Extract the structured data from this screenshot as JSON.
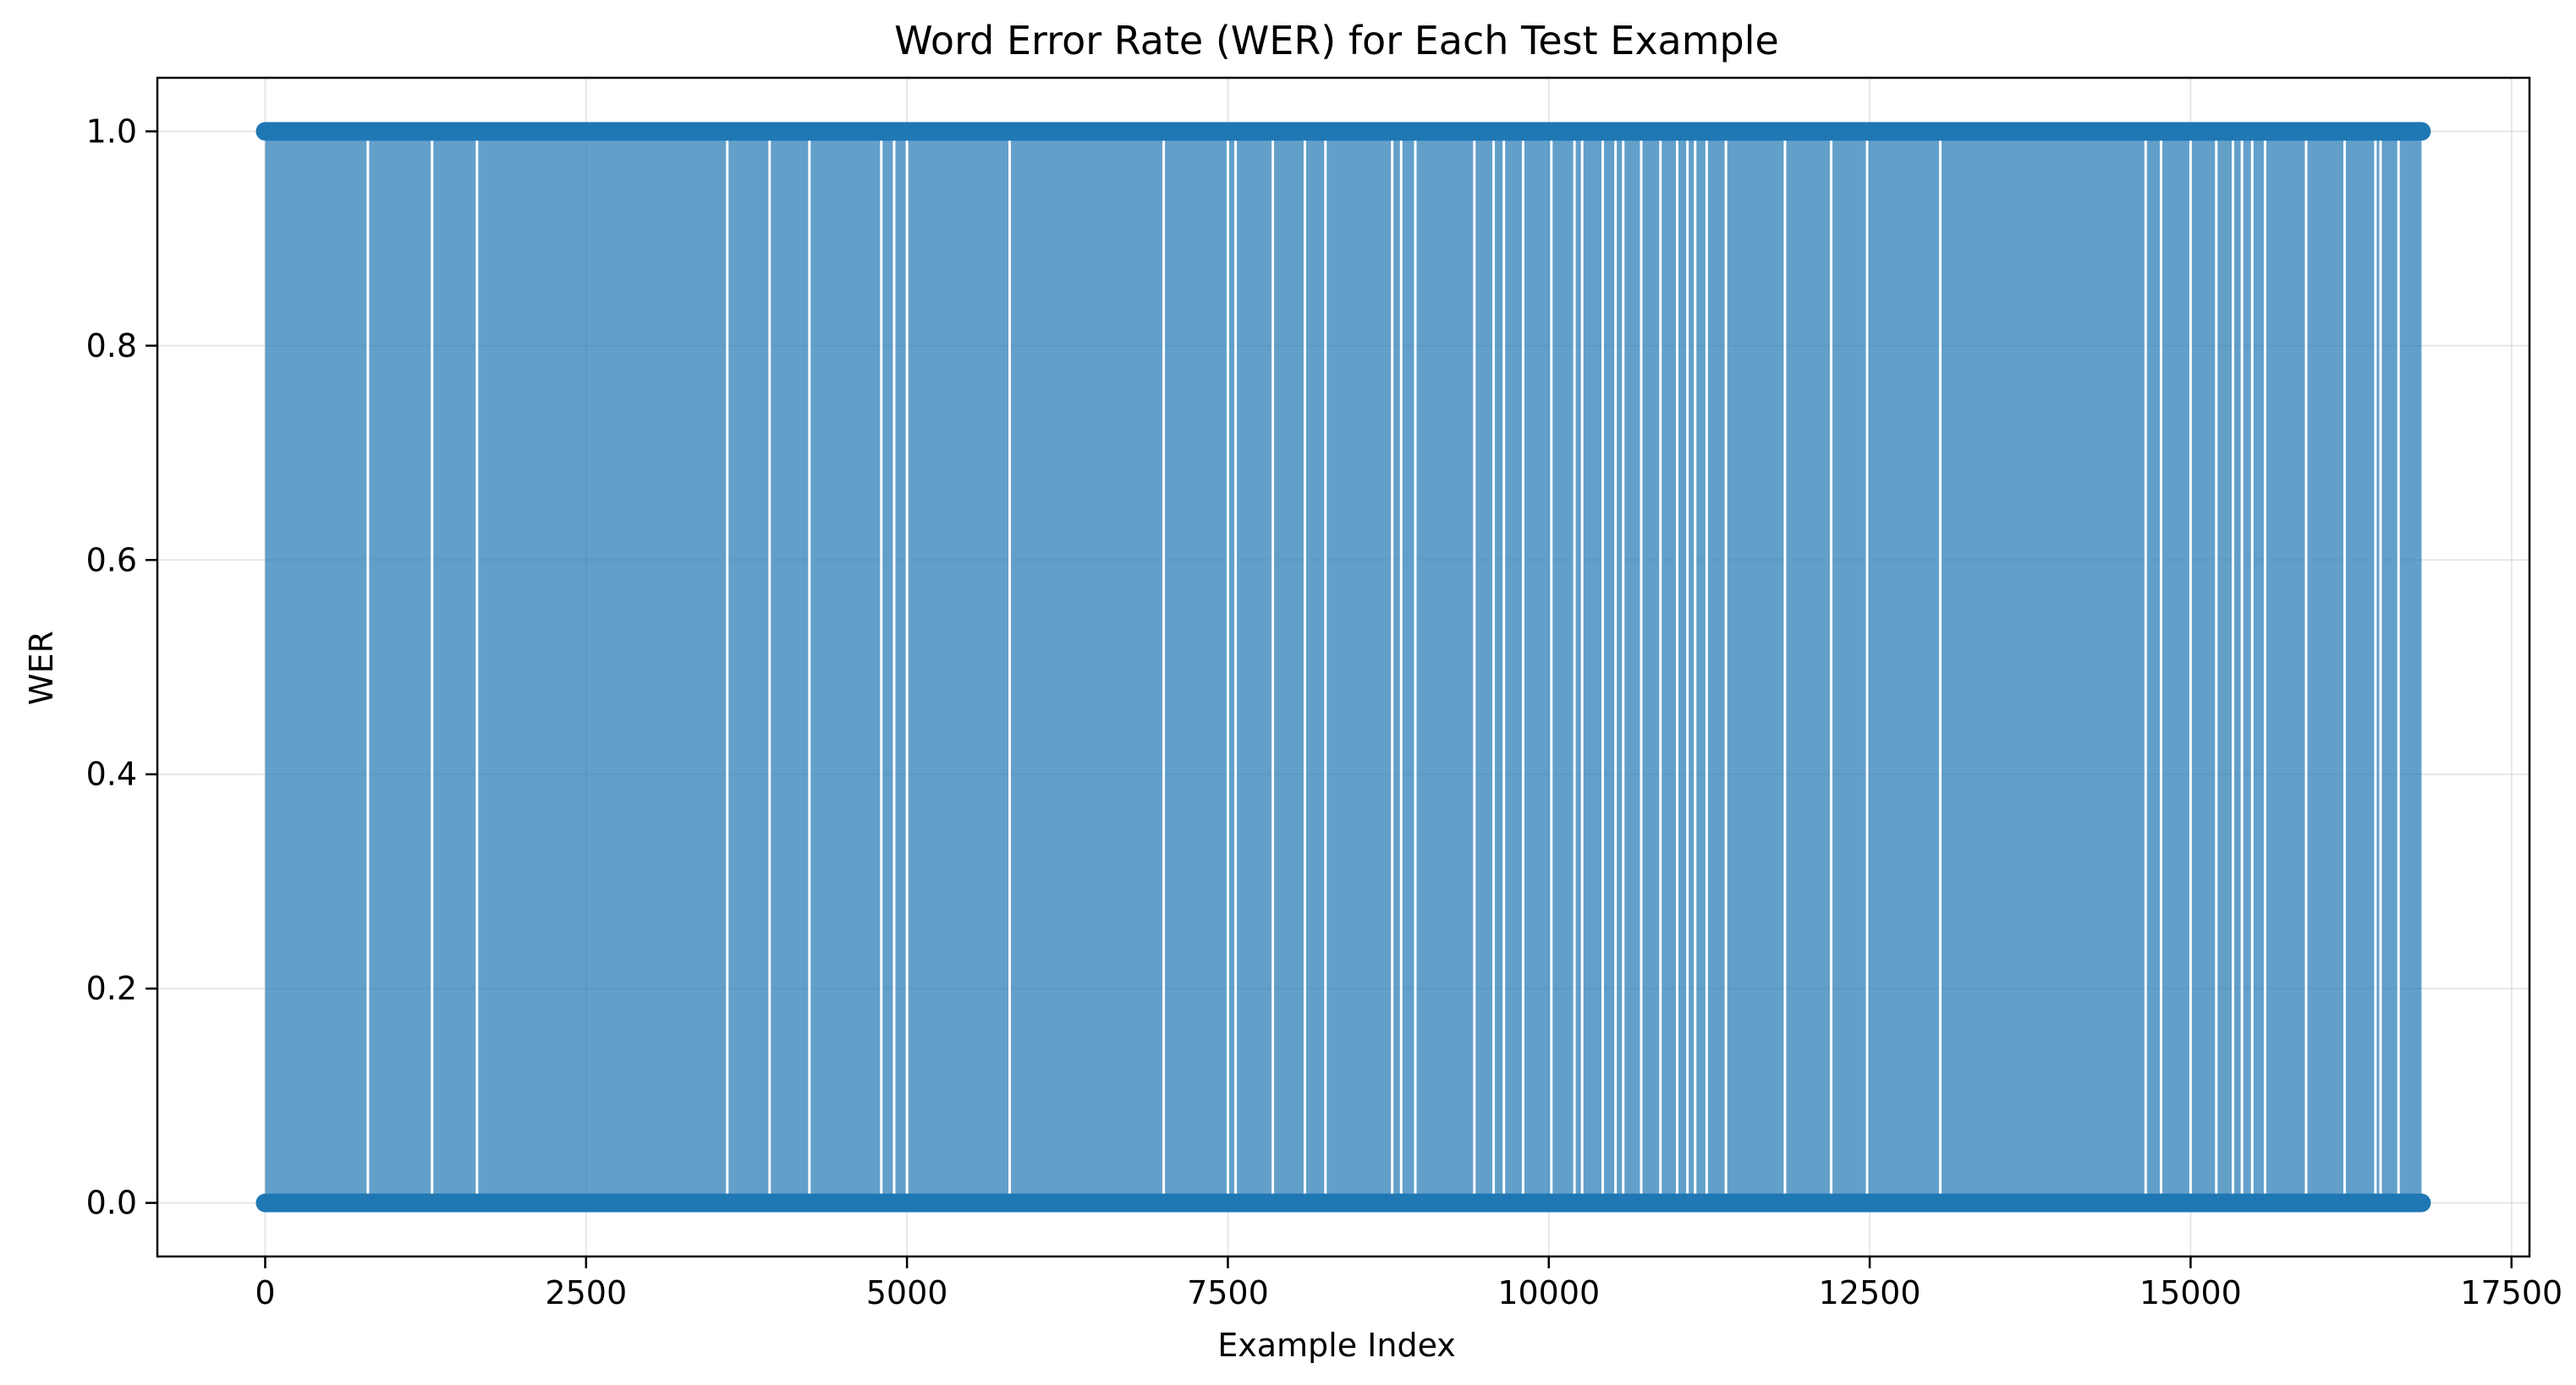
{
  "chart_data": {
    "type": "line",
    "title": "Word Error Rate (WER) for Each Test Example",
    "xlabel": "Example Index",
    "ylabel": "WER",
    "xlim": [
      -840,
      17640
    ],
    "ylim": [
      -0.05,
      1.05
    ],
    "x_ticks": [
      0,
      2500,
      5000,
      7500,
      10000,
      12500,
      15000,
      17500
    ],
    "y_ticks": [
      0.0,
      0.2,
      0.4,
      0.6,
      0.8,
      1.0
    ],
    "x_tick_labels": [
      "0",
      "2500",
      "5000",
      "7500",
      "10000",
      "12500",
      "15000",
      "17500"
    ],
    "y_tick_labels": [
      "0.0",
      "0.2",
      "0.4",
      "0.6",
      "0.8",
      "1.0"
    ],
    "grid": true,
    "marker": "o",
    "series_color": "#1f77b4",
    "series_alpha": 0.7,
    "n_examples": 16800,
    "values_observed": [
      0.0,
      1.0
    ],
    "zero_wer_examples_visible_as_gaps": [
      800,
      1300,
      1650,
      3600,
      3930,
      4240,
      4800,
      4900,
      5000,
      5800,
      7000,
      7500,
      7560,
      7850,
      8100,
      8260,
      8780,
      8850,
      8960,
      9420,
      9570,
      9650,
      9800,
      10020,
      10200,
      10260,
      10420,
      10520,
      10580,
      10720,
      10870,
      11000,
      11080,
      11140,
      11230,
      11380,
      11840,
      12200,
      12480,
      13050,
      14650,
      14770,
      15000,
      15200,
      15330,
      15400,
      15480,
      15580,
      15900,
      16200,
      16440,
      16480,
      16620
    ]
  }
}
